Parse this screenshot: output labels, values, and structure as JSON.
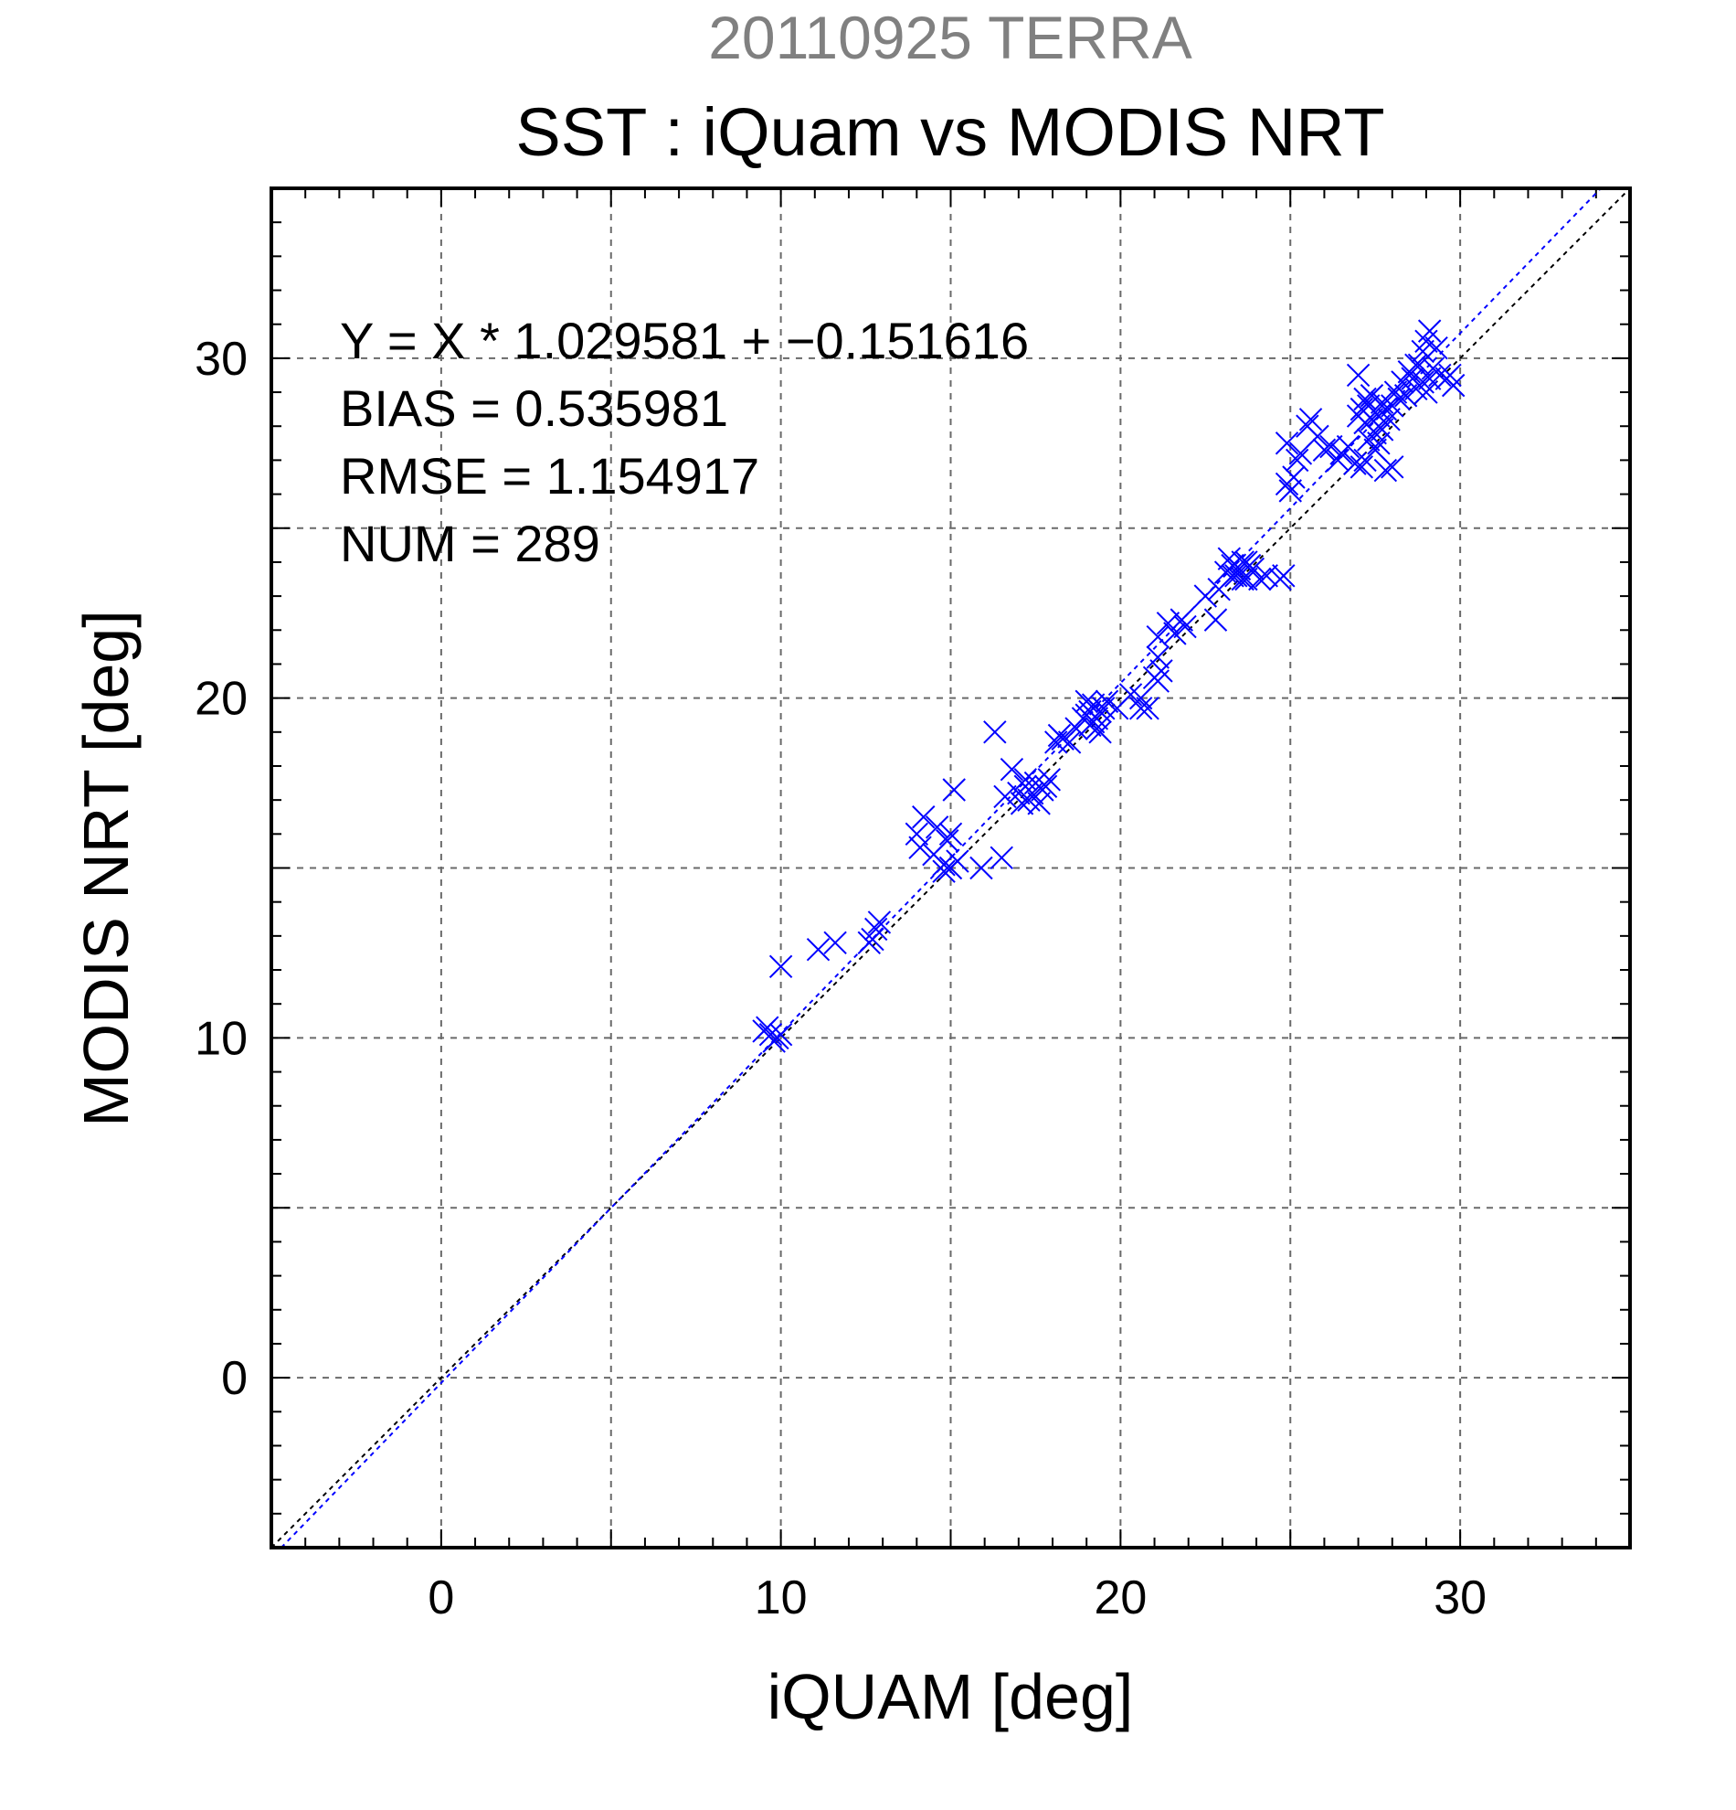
{
  "chart_data": {
    "type": "scatter",
    "title": "20110925 TERRA",
    "subtitle": "SST : iQuam vs MODIS NRT",
    "xlabel": "iQUAM [deg]",
    "ylabel": "MODIS NRT [deg]",
    "xlim": [
      -5,
      35
    ],
    "ylim": [
      -5,
      35
    ],
    "xticks": [
      "0",
      "10",
      "20",
      "30"
    ],
    "yticks": [
      "0",
      "10",
      "20",
      "30"
    ],
    "grid": true,
    "marker": "x",
    "colors": {
      "points": "#0000ff",
      "fit_line": "#0000ff",
      "identity_line": "#000000"
    },
    "annotations": [
      "Y = X * 1.029581 + −0.151616",
      "BIAS = 0.535981",
      "RMSE = 1.154917",
      "NUM = 289"
    ],
    "fit": {
      "slope": 1.029581,
      "intercept": -0.151616
    },
    "identity": {
      "slope": 1,
      "intercept": 0
    },
    "points": [
      [
        9.5,
        10.2
      ],
      [
        9.7,
        10.1
      ],
      [
        9.9,
        10.0
      ],
      [
        9.6,
        10.3
      ],
      [
        10.0,
        10.1
      ],
      [
        9.8,
        9.9
      ],
      [
        10.0,
        12.1
      ],
      [
        11.1,
        12.6
      ],
      [
        11.6,
        12.8
      ],
      [
        12.6,
        12.8
      ],
      [
        12.8,
        13.2
      ],
      [
        12.9,
        13.4
      ],
      [
        12.7,
        12.9
      ],
      [
        14.0,
        16.0
      ],
      [
        14.2,
        16.5
      ],
      [
        14.1,
        15.6
      ],
      [
        14.5,
        15.4
      ],
      [
        14.8,
        15.1
      ],
      [
        14.6,
        16.2
      ],
      [
        15.0,
        15.0
      ],
      [
        14.9,
        15.8
      ],
      [
        15.0,
        16.0
      ],
      [
        15.1,
        17.3
      ],
      [
        14.8,
        14.9
      ],
      [
        15.2,
        15.2
      ],
      [
        15.9,
        15.0
      ],
      [
        16.5,
        15.3
      ],
      [
        16.3,
        19.0
      ],
      [
        16.6,
        17.1
      ],
      [
        16.8,
        17.9
      ],
      [
        17.0,
        17.2
      ],
      [
        17.1,
        16.9
      ],
      [
        17.2,
        17.4
      ],
      [
        17.3,
        17.0
      ],
      [
        17.5,
        17.5
      ],
      [
        17.4,
        17.2
      ],
      [
        17.7,
        17.3
      ],
      [
        17.9,
        17.6
      ],
      [
        17.6,
        16.9
      ],
      [
        17.2,
        17.6
      ],
      [
        17.8,
        17.4
      ],
      [
        18.1,
        18.7
      ],
      [
        18.3,
        18.8
      ],
      [
        18.5,
        18.7
      ],
      [
        18.7,
        19.1
      ],
      [
        18.9,
        19.4
      ],
      [
        18.2,
        18.9
      ],
      [
        19.0,
        19.5
      ],
      [
        19.1,
        19.2
      ],
      [
        19.2,
        19.8
      ],
      [
        19.3,
        19.4
      ],
      [
        19.0,
        19.9
      ],
      [
        19.4,
        19.6
      ],
      [
        19.3,
        19.1
      ],
      [
        19.5,
        19.7
      ],
      [
        19.6,
        19.9
      ],
      [
        19.1,
        19.6
      ],
      [
        19.2,
        19.3
      ],
      [
        19.4,
        19.0
      ],
      [
        19.9,
        19.7
      ],
      [
        20.3,
        20.1
      ],
      [
        20.6,
        20.0
      ],
      [
        20.6,
        19.7
      ],
      [
        20.8,
        19.7
      ],
      [
        21.1,
        20.5
      ],
      [
        21.2,
        20.8
      ],
      [
        21.0,
        20.6
      ],
      [
        21.1,
        21.2
      ],
      [
        21.1,
        21.8
      ],
      [
        21.4,
        22.2
      ],
      [
        21.6,
        21.9
      ],
      [
        21.8,
        22.3
      ],
      [
        21.9,
        22.1
      ],
      [
        22.5,
        23.0
      ],
      [
        22.8,
        22.3
      ],
      [
        22.9,
        23.2
      ],
      [
        23.1,
        23.7
      ],
      [
        23.3,
        23.9
      ],
      [
        23.5,
        23.8
      ],
      [
        23.6,
        24.0
      ],
      [
        23.4,
        23.6
      ],
      [
        23.7,
        23.5
      ],
      [
        23.8,
        23.9
      ],
      [
        23.2,
        24.1
      ],
      [
        23.9,
        23.8
      ],
      [
        23.6,
        23.5
      ],
      [
        23.3,
        23.6
      ],
      [
        23.7,
        24.0
      ],
      [
        24.1,
        23.5
      ],
      [
        24.3,
        23.6
      ],
      [
        24.7,
        23.5
      ],
      [
        24.8,
        23.6
      ],
      [
        24.9,
        26.3
      ],
      [
        25.0,
        26.1
      ],
      [
        25.1,
        26.5
      ],
      [
        25.2,
        27.0
      ],
      [
        24.9,
        27.5
      ],
      [
        25.3,
        27.2
      ],
      [
        25.5,
        28.0
      ],
      [
        25.6,
        28.2
      ],
      [
        25.8,
        27.7
      ],
      [
        26.0,
        27.3
      ],
      [
        26.2,
        27.4
      ],
      [
        26.5,
        27.2
      ],
      [
        26.7,
        27.4
      ],
      [
        26.4,
        27.0
      ],
      [
        26.9,
        26.9
      ],
      [
        27.0,
        29.5
      ],
      [
        27.1,
        26.8
      ],
      [
        27.2,
        27.0
      ],
      [
        27.0,
        28.3
      ],
      [
        27.1,
        28.5
      ],
      [
        27.2,
        28.1
      ],
      [
        27.3,
        28.6
      ],
      [
        27.4,
        28.2
      ],
      [
        27.2,
        28.8
      ],
      [
        27.5,
        28.4
      ],
      [
        27.6,
        28.0
      ],
      [
        27.7,
        28.7
      ],
      [
        27.5,
        27.8
      ],
      [
        27.3,
        27.6
      ],
      [
        27.4,
        28.9
      ],
      [
        27.6,
        28.3
      ],
      [
        27.8,
        28.5
      ],
      [
        27.9,
        28.2
      ],
      [
        27.7,
        27.9
      ],
      [
        27.5,
        27.3
      ],
      [
        27.8,
        26.7
      ],
      [
        28.0,
        26.8
      ],
      [
        27.6,
        27.5
      ],
      [
        28.0,
        28.6
      ],
      [
        28.1,
        29.0
      ],
      [
        28.2,
        28.8
      ],
      [
        28.3,
        29.3
      ],
      [
        28.4,
        28.9
      ],
      [
        28.5,
        29.6
      ],
      [
        28.6,
        29.4
      ],
      [
        28.7,
        29.1
      ],
      [
        28.8,
        29.8
      ],
      [
        28.9,
        30.2
      ],
      [
        29.0,
        30.5
      ],
      [
        29.1,
        30.8
      ],
      [
        28.9,
        29.3
      ],
      [
        29.2,
        29.7
      ],
      [
        29.3,
        30.3
      ],
      [
        29.4,
        29.5
      ],
      [
        29.0,
        29.0
      ],
      [
        28.7,
        29.8
      ],
      [
        29.1,
        29.4
      ],
      [
        29.6,
        29.4
      ],
      [
        29.8,
        29.2
      ],
      [
        29.7,
        29.5
      ]
    ]
  }
}
